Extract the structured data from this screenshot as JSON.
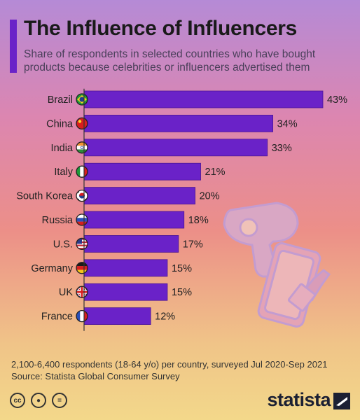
{
  "title": "The Influence of Influencers",
  "subtitle": "Share of respondents in selected countries who have bought products because celebrities or influencers advertised them",
  "footnote": {
    "line1": "2,100-6,400 respondents (18-64 y/o) per country, surveyed Jul 2020-Sep 2021",
    "line2": "Source: Statista Global Consumer Survey"
  },
  "brand": "statista",
  "license_icons": [
    "cc-icon",
    "attribution-icon",
    "no-derivatives-icon"
  ],
  "colors": {
    "bar": "#6a22c8",
    "bar_edge": "#4b1594",
    "accent": "#6a22c8",
    "axis": "#333333"
  },
  "chart_data": {
    "type": "bar",
    "orientation": "horizontal",
    "categories": [
      "Brazil",
      "China",
      "India",
      "Italy",
      "South Korea",
      "Russia",
      "U.S.",
      "Germany",
      "UK",
      "France"
    ],
    "values": [
      43,
      34,
      33,
      21,
      20,
      18,
      17,
      15,
      15,
      12
    ],
    "value_labels": [
      "43%",
      "34%",
      "33%",
      "21%",
      "20%",
      "18%",
      "17%",
      "15%",
      "15%",
      "12%"
    ],
    "flag_icons": [
      "brazil-flag-icon",
      "china-flag-icon",
      "india-flag-icon",
      "italy-flag-icon",
      "south-korea-flag-icon",
      "russia-flag-icon",
      "us-flag-icon",
      "germany-flag-icon",
      "uk-flag-icon",
      "france-flag-icon"
    ],
    "grid": false
  }
}
